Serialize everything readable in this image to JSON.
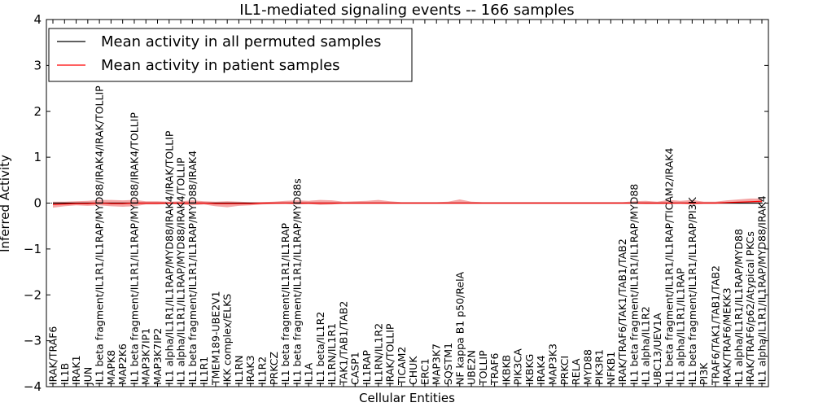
{
  "chart_data": {
    "type": "line",
    "title": "IL1-mediated signaling events -- 166 samples",
    "xlabel": "Cellular Entities",
    "ylabel": "Inferred Activity",
    "ylim": [
      -4,
      4
    ],
    "yticks": [
      -4,
      -3,
      -2,
      -1,
      0,
      1,
      2,
      3,
      4
    ],
    "ytick_labels": [
      "−4",
      "−3",
      "−2",
      "−1",
      "0",
      "1",
      "2",
      "3",
      "4"
    ],
    "legend_position": "top-left",
    "categories": [
      "IRAK/TRAF6",
      "IL1B",
      "IRAK1",
      "JUN",
      "IL1 beta fragment/IL1R1/IL1RAP/MYD88/IRAK4/IRAK/TOLLIP",
      "MAPK8",
      "MAP2K6",
      "IL1 beta fragment/IL1R1/IL1RAP/MYD88/IRAK4/TOLLIP",
      "MAP3K7IP1",
      "MAP3K7IP2",
      "IL1 alpha/IL1R1/IL1RAP/MYD88/IRAK4/IRAK/TOLLIP",
      "IL1 alpha/IL1R1/IL1RAP/MYD88/IRAK4/TOLLIP",
      "IL1 beta fragment/IL1R1/IL1RAP/MYD88/IRAK4",
      "IL1R1",
      "TMEM189-UBE2V1",
      "IKK complex/ELKS",
      "IL1RN",
      "IRAK3",
      "IL1R2",
      "PRKCZ",
      "IL1 beta fragment/IL1R1/IL1RAP",
      "IL1 beta fragment/IL1R1/IL1RAP/MYD88s",
      "IL1A",
      "IL1 beta/IL1R2",
      "IL1RN/IL1R1",
      "TAK1/TAB1/TAB2",
      "CASP1",
      "IL1RAP",
      "IL1RN/IL1R2",
      "IRAK/TOLLIP",
      "TICAM2",
      "CHUK",
      "ERC1",
      "MAP3K7",
      "SQSTM1",
      "NF kappa B1 p50/RelA",
      "UBE2N",
      "TOLLIP",
      "TRAF6",
      "IKBKB",
      "PIK3CA",
      "IKBKG",
      "IRAK4",
      "MAP3K3",
      "PRKCI",
      "RELA",
      "MYD88",
      "PIK3R1",
      "NFKB1",
      "IRAK/TRAF6/TAK1/TAB1/TAB2",
      "IL1 beta fragment/IL1R1/IL1RAP/MYD88",
      "IL1 alpha/IL1R2",
      "UBC13/UEV1A",
      "IL1 beta fragment/IL1R1/IL1RAP/TICAM2/IRAK4",
      "IL1 alpha/IL1R1/IL1RAP",
      "IL1 beta fragment/IL1R1/IL1RAP/PI3K",
      "PI3K",
      "TRAF6/TAK1/TAB1/TAB2",
      "IRAK/TRAF6/MEKK3",
      "IL1 alpha/IL1R1/IL1RAP/MYD88",
      "IRAK/TRAF6/p62/Atypical PKCs",
      "IL1 alpha/IL1R1/IL1RAP/MYD88/IRAK4"
    ],
    "series": [
      {
        "name": "Mean activity in all permuted samples",
        "color": "#000000",
        "values": [
          0.0,
          0.0,
          0.0,
          0.0,
          0.0,
          0.0,
          0.0,
          0.0,
          0.0,
          0.0,
          0.0,
          0.0,
          0.0,
          0.0,
          0.0,
          0.0,
          0.0,
          0.0,
          0.0,
          0.0,
          0.0,
          0.0,
          0.0,
          0.0,
          0.0,
          0.0,
          0.0,
          0.0,
          0.0,
          0.0,
          0.0,
          0.0,
          0.0,
          0.0,
          0.0,
          0.0,
          0.0,
          0.0,
          0.0,
          0.0,
          0.0,
          0.0,
          0.0,
          0.0,
          0.0,
          0.0,
          0.0,
          0.0,
          0.0,
          0.0,
          0.0,
          0.0,
          0.0,
          0.0,
          0.0,
          0.0,
          0.0,
          0.0,
          0.0,
          0.0,
          0.0,
          0.0
        ]
      },
      {
        "name": "Mean activity in patient samples",
        "color": "#ff0000",
        "values": [
          -0.03,
          -0.02,
          -0.01,
          -0.01,
          0.0,
          -0.01,
          -0.01,
          0.0,
          0.0,
          0.0,
          0.0,
          0.0,
          0.0,
          0.0,
          -0.01,
          -0.01,
          -0.01,
          -0.01,
          0.0,
          0.0,
          0.0,
          0.0,
          0.0,
          0.0,
          0.0,
          0.0,
          0.0,
          0.0,
          0.0,
          0.0,
          0.0,
          0.0,
          0.0,
          0.0,
          0.0,
          0.0,
          0.0,
          0.0,
          0.0,
          0.0,
          0.0,
          0.0,
          0.0,
          0.0,
          0.0,
          0.0,
          0.0,
          0.0,
          0.0,
          0.0,
          0.0,
          0.0,
          0.0,
          0.0,
          0.0,
          0.0,
          0.0,
          0.0,
          0.01,
          0.02,
          0.03,
          0.04
        ],
        "band_lower": [
          -0.1,
          -0.07,
          -0.05,
          -0.06,
          -0.05,
          -0.07,
          -0.08,
          -0.07,
          -0.03,
          -0.03,
          -0.02,
          -0.03,
          -0.05,
          -0.03,
          -0.07,
          -0.09,
          -0.06,
          -0.05,
          -0.03,
          -0.02,
          -0.01,
          -0.03,
          -0.02,
          -0.04,
          -0.03,
          -0.01,
          -0.01,
          -0.01,
          -0.01,
          -0.01,
          -0.01,
          -0.01,
          -0.01,
          -0.01,
          -0.01,
          -0.01,
          -0.01,
          -0.01,
          -0.01,
          -0.01,
          -0.01,
          -0.01,
          -0.01,
          -0.01,
          -0.01,
          -0.01,
          -0.01,
          -0.01,
          -0.01,
          -0.01,
          -0.01,
          -0.02,
          -0.02,
          -0.02,
          -0.01,
          -0.03,
          -0.01,
          -0.01,
          -0.01,
          -0.01,
          -0.01,
          -0.01
        ],
        "band_upper": [
          0.03,
          0.03,
          0.04,
          0.05,
          0.07,
          0.07,
          0.06,
          0.07,
          0.04,
          0.04,
          0.03,
          0.04,
          0.06,
          0.04,
          0.03,
          0.04,
          0.03,
          0.02,
          0.02,
          0.03,
          0.05,
          0.06,
          0.05,
          0.07,
          0.06,
          0.03,
          0.04,
          0.05,
          0.07,
          0.04,
          0.02,
          0.02,
          0.02,
          0.02,
          0.03,
          0.08,
          0.03,
          0.02,
          0.02,
          0.02,
          0.02,
          0.02,
          0.02,
          0.02,
          0.02,
          0.02,
          0.02,
          0.02,
          0.02,
          0.02,
          0.04,
          0.05,
          0.03,
          0.07,
          0.05,
          0.07,
          0.03,
          0.03,
          0.06,
          0.08,
          0.1,
          0.1
        ]
      }
    ]
  }
}
